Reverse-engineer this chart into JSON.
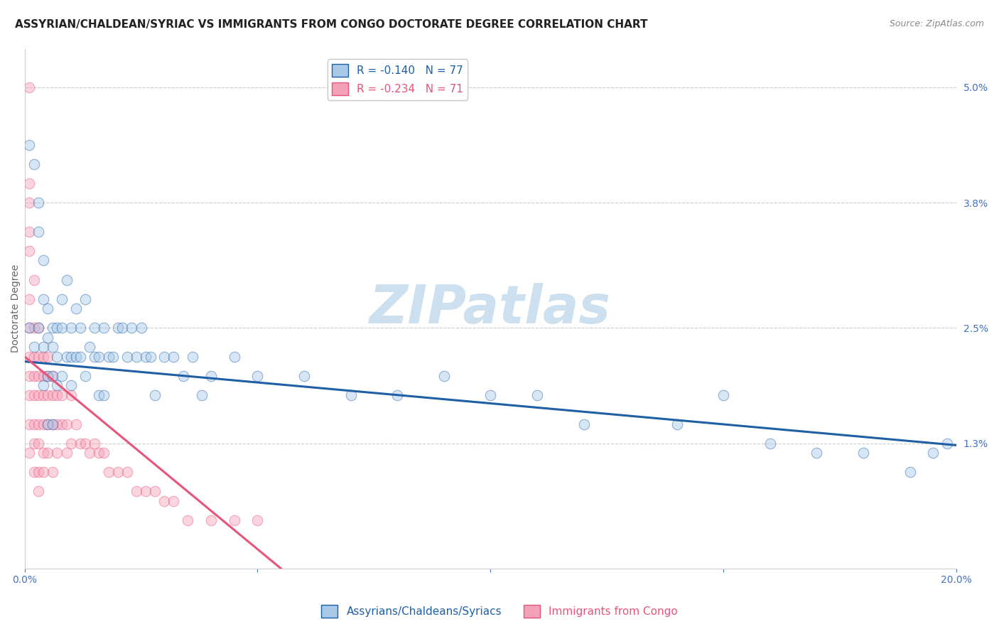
{
  "title": "ASSYRIAN/CHALDEAN/SYRIAC VS IMMIGRANTS FROM CONGO DOCTORATE DEGREE CORRELATION CHART",
  "source": "Source: ZipAtlas.com",
  "ylabel": "Doctorate Degree",
  "xlim": [
    0.0,
    0.2
  ],
  "ylim": [
    0.0,
    0.054
  ],
  "ytick_positions": [
    0.013,
    0.025,
    0.038,
    0.05
  ],
  "ytick_labels": [
    "1.3%",
    "2.5%",
    "3.8%",
    "5.0%"
  ],
  "blue_R": -0.14,
  "blue_N": 77,
  "pink_R": -0.234,
  "pink_N": 71,
  "blue_color": "#a8c8e8",
  "pink_color": "#f4a0b8",
  "blue_line_color": "#1f5fa6",
  "pink_line_color": "#e8547a",
  "legend_label_blue": "Assyrians/Chaldeans/Syriacs",
  "legend_label_pink": "Immigrants from Congo",
  "blue_line_x0": 0.0,
  "blue_line_y0": 0.0215,
  "blue_line_x1": 0.2,
  "blue_line_y1": 0.0128,
  "pink_line_x0": 0.0,
  "pink_line_y0": 0.022,
  "pink_line_x1": 0.055,
  "pink_line_y1": 0.0,
  "blue_scatter_x": [
    0.001,
    0.001,
    0.002,
    0.002,
    0.003,
    0.003,
    0.003,
    0.004,
    0.004,
    0.004,
    0.004,
    0.005,
    0.005,
    0.005,
    0.005,
    0.006,
    0.006,
    0.006,
    0.006,
    0.007,
    0.007,
    0.007,
    0.008,
    0.008,
    0.008,
    0.009,
    0.009,
    0.01,
    0.01,
    0.01,
    0.011,
    0.011,
    0.012,
    0.012,
    0.013,
    0.013,
    0.014,
    0.015,
    0.015,
    0.016,
    0.016,
    0.017,
    0.017,
    0.018,
    0.019,
    0.02,
    0.021,
    0.022,
    0.023,
    0.024,
    0.025,
    0.026,
    0.027,
    0.028,
    0.03,
    0.032,
    0.034,
    0.036,
    0.038,
    0.04,
    0.045,
    0.05,
    0.06,
    0.07,
    0.08,
    0.09,
    0.1,
    0.11,
    0.12,
    0.14,
    0.15,
    0.16,
    0.17,
    0.18,
    0.19,
    0.195,
    0.198
  ],
  "blue_scatter_y": [
    0.025,
    0.044,
    0.042,
    0.023,
    0.038,
    0.035,
    0.025,
    0.032,
    0.028,
    0.023,
    0.019,
    0.027,
    0.024,
    0.02,
    0.015,
    0.025,
    0.023,
    0.02,
    0.015,
    0.025,
    0.022,
    0.019,
    0.028,
    0.025,
    0.02,
    0.03,
    0.022,
    0.025,
    0.022,
    0.019,
    0.027,
    0.022,
    0.025,
    0.022,
    0.028,
    0.02,
    0.023,
    0.025,
    0.022,
    0.022,
    0.018,
    0.025,
    0.018,
    0.022,
    0.022,
    0.025,
    0.025,
    0.022,
    0.025,
    0.022,
    0.025,
    0.022,
    0.022,
    0.018,
    0.022,
    0.022,
    0.02,
    0.022,
    0.018,
    0.02,
    0.022,
    0.02,
    0.02,
    0.018,
    0.018,
    0.02,
    0.018,
    0.018,
    0.015,
    0.015,
    0.018,
    0.013,
    0.012,
    0.012,
    0.01,
    0.012,
    0.013
  ],
  "pink_scatter_x": [
    0.001,
    0.001,
    0.001,
    0.001,
    0.001,
    0.001,
    0.001,
    0.001,
    0.001,
    0.001,
    0.001,
    0.001,
    0.002,
    0.002,
    0.002,
    0.002,
    0.002,
    0.002,
    0.002,
    0.002,
    0.003,
    0.003,
    0.003,
    0.003,
    0.003,
    0.003,
    0.003,
    0.003,
    0.004,
    0.004,
    0.004,
    0.004,
    0.004,
    0.004,
    0.005,
    0.005,
    0.005,
    0.005,
    0.005,
    0.006,
    0.006,
    0.006,
    0.006,
    0.007,
    0.007,
    0.007,
    0.008,
    0.008,
    0.009,
    0.009,
    0.01,
    0.01,
    0.011,
    0.012,
    0.013,
    0.014,
    0.015,
    0.016,
    0.017,
    0.018,
    0.02,
    0.022,
    0.024,
    0.026,
    0.028,
    0.03,
    0.032,
    0.035,
    0.04,
    0.045,
    0.05
  ],
  "pink_scatter_y": [
    0.05,
    0.04,
    0.038,
    0.035,
    0.033,
    0.028,
    0.025,
    0.022,
    0.02,
    0.018,
    0.015,
    0.012,
    0.03,
    0.025,
    0.022,
    0.02,
    0.018,
    0.015,
    0.013,
    0.01,
    0.025,
    0.022,
    0.02,
    0.018,
    0.015,
    0.013,
    0.01,
    0.008,
    0.022,
    0.02,
    0.018,
    0.015,
    0.012,
    0.01,
    0.022,
    0.02,
    0.018,
    0.015,
    0.012,
    0.02,
    0.018,
    0.015,
    0.01,
    0.018,
    0.015,
    0.012,
    0.018,
    0.015,
    0.015,
    0.012,
    0.018,
    0.013,
    0.015,
    0.013,
    0.013,
    0.012,
    0.013,
    0.012,
    0.012,
    0.01,
    0.01,
    0.01,
    0.008,
    0.008,
    0.008,
    0.007,
    0.007,
    0.005,
    0.005,
    0.005,
    0.005
  ],
  "background_color": "#ffffff",
  "grid_color": "#cccccc",
  "watermark_text": "ZIPatlas",
  "watermark_color": "#cce0f0",
  "title_fontsize": 11,
  "axis_label_fontsize": 10,
  "tick_fontsize": 10,
  "legend_fontsize": 11,
  "marker_size": 110,
  "marker_alpha": 0.45,
  "marker_linewidth": 0.8
}
